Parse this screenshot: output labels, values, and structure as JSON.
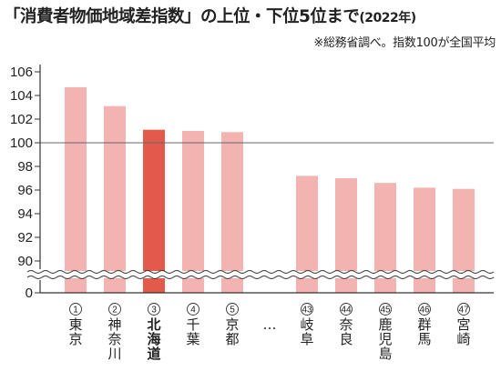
{
  "header": {
    "title": "「消費者物価地域差指数」の上位・下位5位まで",
    "year": "(2022年)",
    "subtitle": "※総務省調べ。指数100が全国平均"
  },
  "colors": {
    "bar": "#f2b3b1",
    "highlight": "#e35a4d",
    "highlight_text": "#e0493b",
    "axis": "#333333"
  },
  "chart_data": {
    "type": "bar",
    "title": "「消費者物価地域差指数」の上位・下位5位まで",
    "ylim": [
      88,
      106
    ],
    "y_ticks": [
      90,
      92,
      94,
      96,
      98,
      100,
      102,
      104,
      106
    ],
    "y_zero_label": "0",
    "axis_break": true,
    "reference_line": 100,
    "gap_label": "…",
    "categories": [
      {
        "rank": "①",
        "name": "東京",
        "value": 104.7,
        "highlight": false
      },
      {
        "rank": "②",
        "name": "神奈川",
        "value": 103.1,
        "highlight": false
      },
      {
        "rank": "③",
        "name": "北海道",
        "value": 101.1,
        "highlight": true
      },
      {
        "rank": "④",
        "name": "千葉",
        "value": 101.0,
        "highlight": false
      },
      {
        "rank": "⑤",
        "name": "京都",
        "value": 100.9,
        "highlight": false
      },
      {
        "rank": "㊸",
        "name": "岐阜",
        "value": 97.2,
        "highlight": false
      },
      {
        "rank": "㊹",
        "name": "奈良",
        "value": 97.0,
        "highlight": false
      },
      {
        "rank": "㊺",
        "name": "鹿児島",
        "value": 96.6,
        "highlight": false
      },
      {
        "rank": "㊻",
        "name": "群馬",
        "value": 96.2,
        "highlight": false
      },
      {
        "rank": "㊼",
        "name": "宮崎",
        "value": 96.1,
        "highlight": false
      }
    ]
  }
}
